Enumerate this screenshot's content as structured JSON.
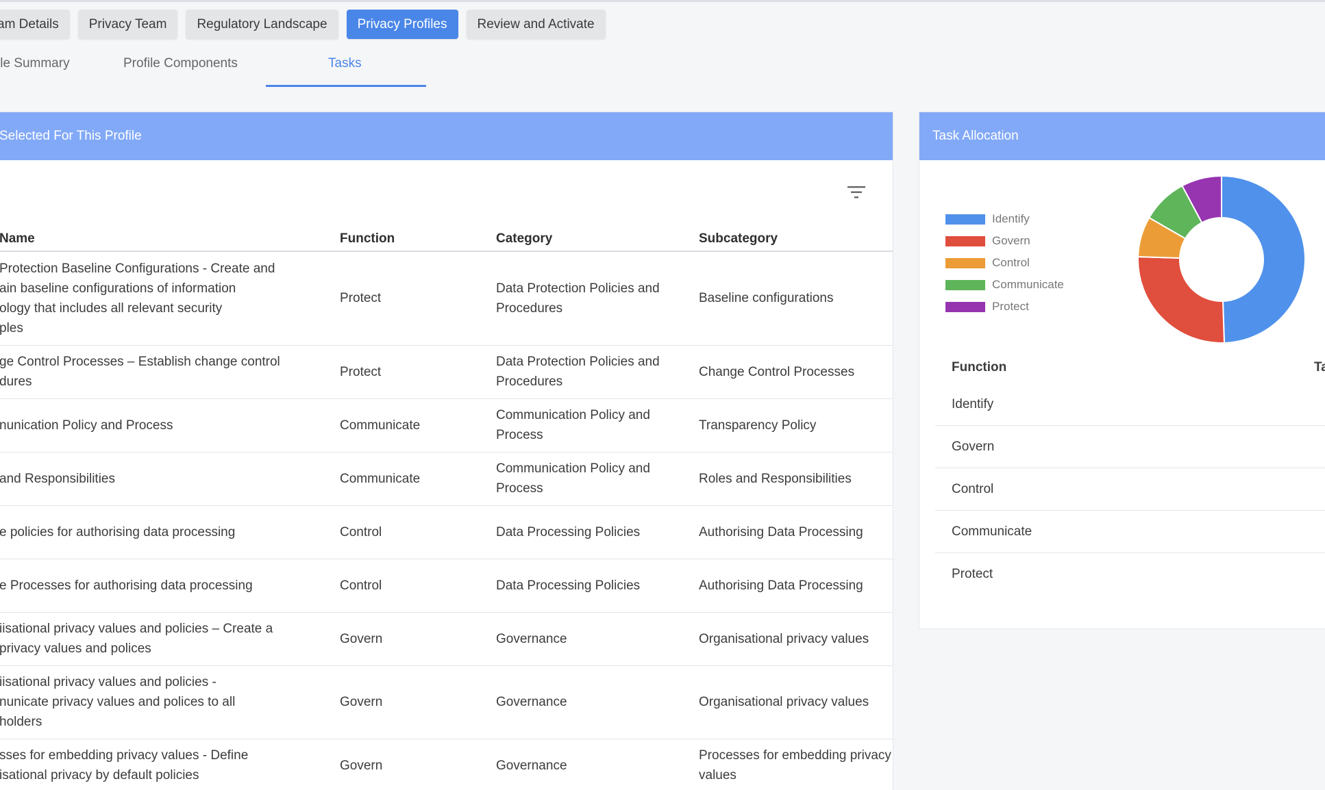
{
  "steps": [
    {
      "label": "am Details",
      "active": false
    },
    {
      "label": "Privacy Team",
      "active": false
    },
    {
      "label": "Regulatory Landscape",
      "active": false
    },
    {
      "label": "Privacy Profiles",
      "active": true
    },
    {
      "label": "Review and Activate",
      "active": false
    }
  ],
  "subtabs": {
    "summary": "ile Summary",
    "components": "Profile Components",
    "tasks": "Tasks"
  },
  "tasks_panel": {
    "title": "Selected For This Profile",
    "columns": {
      "name": "Name",
      "function": "Function",
      "category": "Category",
      "subcategory": "Subcategory"
    },
    "rows": [
      {
        "name": "Protection Baseline Configurations - Create and\nain baseline configurations of information\nology that includes all relevant security\nples",
        "function": "Protect",
        "category": "Data Protection Policies and Procedures",
        "subcategory": "Baseline configurations"
      },
      {
        "name": "ge Control Processes – Establish change control\ndures",
        "function": "Protect",
        "category": "Data Protection Policies and Procedures",
        "subcategory": "Change Control Processes"
      },
      {
        "name": "nunication Policy and Process",
        "function": "Communicate",
        "category": "Communication Policy and Process",
        "subcategory": "Transparency Policy"
      },
      {
        "name": "and Responsibilities",
        "function": "Communicate",
        "category": "Communication Policy and Process",
        "subcategory": "Roles and Responsibilities"
      },
      {
        "name": "e policies for authorising data processing",
        "function": "Control",
        "category": "Data Processing Policies",
        "subcategory": "Authorising Data Processing"
      },
      {
        "name": "e Processes for authorising data processing",
        "function": "Control",
        "category": "Data Processing Policies",
        "subcategory": "Authorising Data Processing"
      },
      {
        "name": "iisational privacy values and policies – Create a\nprivacy values and polices",
        "function": "Govern",
        "category": "Governance",
        "subcategory": "Organisational privacy values"
      },
      {
        "name": "iisational privacy values and policies -\nnunicate privacy values and polices to all\nholders",
        "function": "Govern",
        "category": "Governance",
        "subcategory": "Organisational privacy values"
      },
      {
        "name": "sses for embedding privacy values - Define\nisational privacy by default policies",
        "function": "Govern",
        "category": "Governance",
        "subcategory": "Processes for embedding privacy values"
      }
    ]
  },
  "allocation_panel": {
    "title": "Task Allocation",
    "legend": [
      {
        "label": "Identify",
        "color": "#4f91eb"
      },
      {
        "label": "Govern",
        "color": "#e04e3d"
      },
      {
        "label": "Control",
        "color": "#ec9c36"
      },
      {
        "label": "Communicate",
        "color": "#5eb55a"
      },
      {
        "label": "Protect",
        "color": "#9734b0"
      }
    ],
    "table_header": {
      "function": "Function",
      "tasks": "Ta"
    },
    "functions": [
      "Identify",
      "Govern",
      "Control",
      "Communicate",
      "Protect"
    ]
  },
  "chart_data": {
    "type": "pie",
    "donut": true,
    "categories": [
      "Identify",
      "Govern",
      "Control",
      "Communicate",
      "Protect"
    ],
    "values": [
      47.5,
      25,
      7.5,
      8.5,
      7.5
    ],
    "colors": [
      "#4f91eb",
      "#e04e3d",
      "#ec9c36",
      "#5eb55a",
      "#9734b0"
    ],
    "legend": "left"
  }
}
